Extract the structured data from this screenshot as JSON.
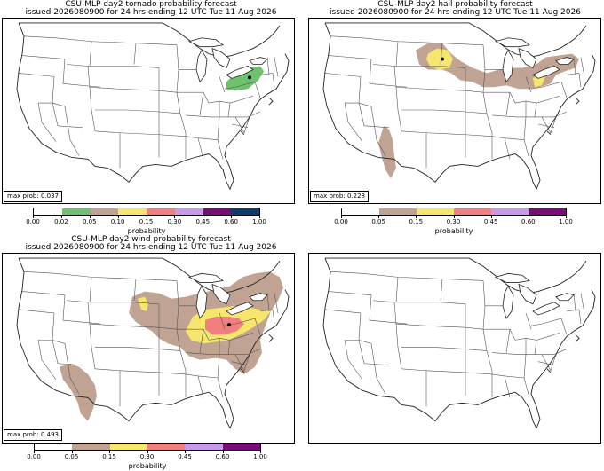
{
  "panels": [
    {
      "id": "tornado",
      "title_line1": "CSU-MLP day2 tornado probability forecast",
      "title_line2": "issued 2026080900 for 24 hrs ending 12 UTC Tue 11 Aug 2026",
      "max_prob": "max prob: 0.037",
      "colorbar": {
        "label": "probability",
        "ticks": [
          "0.00",
          "0.02",
          "0.05",
          "0.10",
          "0.15",
          "0.30",
          "0.45",
          "0.60",
          "1.00"
        ],
        "colors": [
          "#ffffff",
          "#6dc26d",
          "#c0a392",
          "#f6e66e",
          "#f08080",
          "#c899e8",
          "#7a0c7a",
          "#0a3d6e"
        ]
      },
      "areas": [
        {
          "category": "0.02",
          "color": "#6dc26d",
          "region": "Ohio / western Pennsylvania"
        }
      ],
      "max_marker": true
    },
    {
      "id": "hail",
      "title_line1": "CSU-MLP day2 hail probability forecast",
      "title_line2": "issued 2026080900 for 24 hrs ending 12 UTC Tue 11 Aug 2026",
      "max_prob": "max prob: 0.228",
      "colorbar": {
        "label": "probability",
        "ticks": [
          "0.00",
          "0.05",
          "0.15",
          "0.30",
          "0.45",
          "0.60",
          "1.00"
        ],
        "colors": [
          "#ffffff",
          "#c0a392",
          "#f6e66e",
          "#f08080",
          "#c899e8",
          "#7a0c7a"
        ]
      },
      "areas": [
        {
          "category": "0.05",
          "color": "#c0a392",
          "region": "Northern Plains to Mid-Atlantic"
        },
        {
          "category": "0.05",
          "color": "#c0a392",
          "region": "Arizona"
        },
        {
          "category": "0.15",
          "color": "#f6e66e",
          "region": "South Dakota"
        },
        {
          "category": "0.15",
          "color": "#f6e66e",
          "region": "Ohio Valley"
        }
      ],
      "max_marker": true
    },
    {
      "id": "wind",
      "title_line1": "CSU-MLP day2 wind probability forecast",
      "title_line2": "issued 2026080900 for 24 hrs ending 12 UTC Tue 11 Aug 2026",
      "max_prob": "max prob: 0.493",
      "colorbar": {
        "label": "probability",
        "ticks": [
          "0.00",
          "0.05",
          "0.15",
          "0.30",
          "0.45",
          "0.60",
          "1.00"
        ],
        "colors": [
          "#ffffff",
          "#c0a392",
          "#f6e66e",
          "#f08080",
          "#c899e8",
          "#7a0c7a"
        ]
      },
      "areas": [
        {
          "category": "0.05",
          "color": "#c0a392",
          "region": "Central Plains to Mid-Atlantic and Northeast"
        },
        {
          "category": "0.05",
          "color": "#c0a392",
          "region": "Arizona"
        },
        {
          "category": "0.15",
          "color": "#f6e66e",
          "region": "Ohio Valley"
        },
        {
          "category": "0.15",
          "color": "#f6e66e",
          "region": "Nebraska"
        },
        {
          "category": "0.30",
          "color": "#f08080",
          "region": "Ohio / Kentucky"
        }
      ],
      "max_marker": true
    },
    {
      "id": "empty",
      "title_line1": "",
      "title_line2": "",
      "max_prob": "",
      "areas": [],
      "max_marker": false
    }
  ]
}
